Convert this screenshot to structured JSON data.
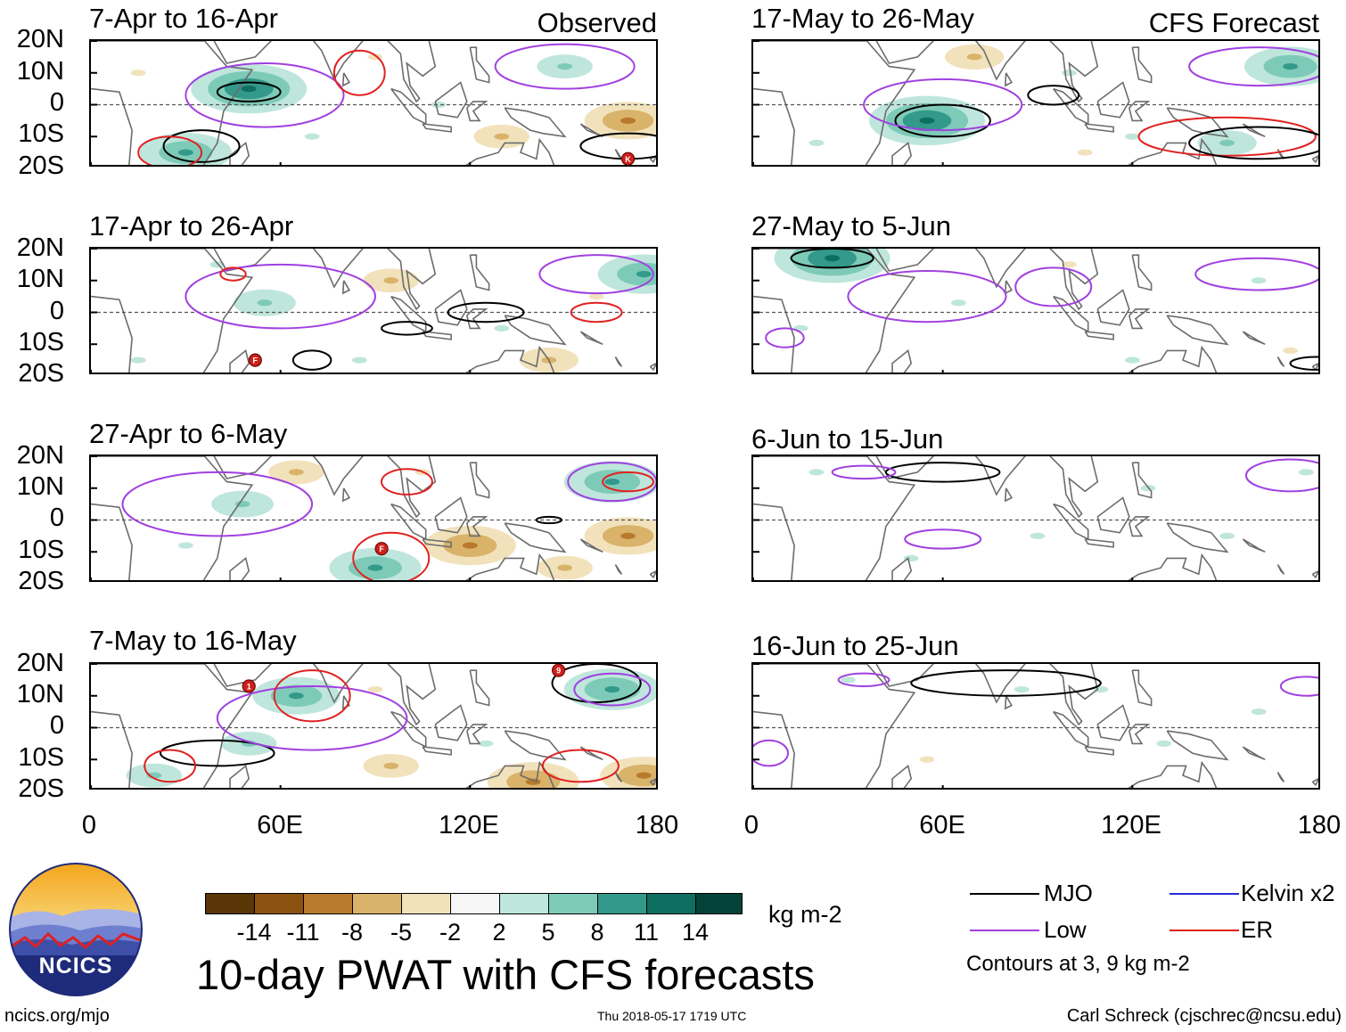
{
  "figure_title": "10-day PWAT with CFS forecasts",
  "column_labels": {
    "observed": "Observed",
    "forecast": "CFS Forecast"
  },
  "units": "kg m-2",
  "footer": {
    "url": "ncics.org/mjo",
    "timestamp": "Thu 2018-05-17 1719 UTC",
    "author": "Carl Schreck (cjschrec@ncsu.edu)"
  },
  "logo_text": "NCICS",
  "contour_note": "Contours at 3, 9 kg m-2",
  "colors": {
    "black": "#000000",
    "mjo": "#000000",
    "low": "#a040e0",
    "kelvin": "#2a2ad8",
    "er": "#e02020",
    "coast": "#6c6c6c"
  },
  "chart_data": {
    "type": "heatmap",
    "y_tick_labels": [
      "20N",
      "10N",
      "0",
      "10S",
      "20S"
    ],
    "x_tick_labels": [
      "0",
      "60E",
      "120E",
      "180"
    ],
    "lat_range": [
      -20,
      20
    ],
    "lon_range": [
      0,
      180
    ],
    "colorbar": {
      "tick_labels": [
        "-14",
        "-11",
        "-8",
        "-5",
        "-2",
        "2",
        "5",
        "8",
        "11",
        "14"
      ],
      "colors": [
        "#5a3506",
        "#8c5310",
        "#b87a2c",
        "#d9b36a",
        "#f2e2bc",
        "#f6f6f6",
        "#bfe6dc",
        "#7ecab8",
        "#33998b",
        "#0e6e60",
        "#04433a"
      ]
    },
    "legend": [
      {
        "name": "MJO",
        "color": "#000000"
      },
      {
        "name": "Kelvin x2",
        "color": "#2a2ad8"
      },
      {
        "name": "Low",
        "color": "#a040e0"
      },
      {
        "name": "ER",
        "color": "#e02020"
      }
    ],
    "panels": [
      {
        "period": "7-Apr to 16-Apr",
        "column": "observed"
      },
      {
        "period": "17-Apr to 26-Apr",
        "column": "observed"
      },
      {
        "period": "27-Apr to 6-May",
        "column": "observed"
      },
      {
        "period": "7-May to 16-May",
        "column": "observed"
      },
      {
        "period": "17-May to 26-May",
        "column": "forecast"
      },
      {
        "period": "27-May to 5-Jun",
        "column": "forecast"
      },
      {
        "period": "6-Jun to 15-Jun",
        "column": "forecast"
      },
      {
        "period": "16-Jun to 25-Jun",
        "column": "forecast"
      }
    ],
    "anomaly_blobs": [
      [
        {
          "lon": 50,
          "lat": 5,
          "v": 12
        },
        {
          "lon": 30,
          "lat": -15,
          "v": 10
        },
        {
          "lon": 130,
          "lat": -10,
          "v": -6
        },
        {
          "lon": 170,
          "lat": -5,
          "v": -9
        },
        {
          "lon": 90,
          "lat": 15,
          "v": -5
        },
        {
          "lon": 150,
          "lat": 12,
          "v": 6
        },
        {
          "lon": 70,
          "lat": -10,
          "v": 4
        },
        {
          "lon": 110,
          "lat": 0,
          "v": 4
        },
        {
          "lon": 15,
          "lat": 10,
          "v": -4
        }
      ],
      [
        {
          "lon": 55,
          "lat": 3,
          "v": 8
        },
        {
          "lon": 40,
          "lat": 15,
          "v": 4
        },
        {
          "lon": 95,
          "lat": 10,
          "v": -6
        },
        {
          "lon": 175,
          "lat": 12,
          "v": 10
        },
        {
          "lon": 130,
          "lat": -5,
          "v": 4
        },
        {
          "lon": 145,
          "lat": -15,
          "v": -7
        },
        {
          "lon": 85,
          "lat": -15,
          "v": 5
        },
        {
          "lon": 15,
          "lat": -15,
          "v": 5
        },
        {
          "lon": 160,
          "lat": 5,
          "v": -4
        }
      ],
      [
        {
          "lon": 48,
          "lat": 5,
          "v": 8
        },
        {
          "lon": 90,
          "lat": -15,
          "v": 10
        },
        {
          "lon": 120,
          "lat": -8,
          "v": -10
        },
        {
          "lon": 165,
          "lat": 12,
          "v": 11
        },
        {
          "lon": 170,
          "lat": -5,
          "v": -9
        },
        {
          "lon": 65,
          "lat": 15,
          "v": -6
        },
        {
          "lon": 150,
          "lat": -15,
          "v": -6
        },
        {
          "lon": 30,
          "lat": -8,
          "v": 5
        },
        {
          "lon": 105,
          "lat": 15,
          "v": -4
        }
      ],
      [
        {
          "lon": 65,
          "lat": 10,
          "v": 9
        },
        {
          "lon": 165,
          "lat": 12,
          "v": 11
        },
        {
          "lon": 140,
          "lat": -17,
          "v": -10
        },
        {
          "lon": 20,
          "lat": -15,
          "v": 6
        },
        {
          "lon": 50,
          "lat": -5,
          "v": 6
        },
        {
          "lon": 95,
          "lat": -12,
          "v": -6
        },
        {
          "lon": 90,
          "lat": 12,
          "v": -5
        },
        {
          "lon": 175,
          "lat": -15,
          "v": -9
        },
        {
          "lon": 125,
          "lat": -5,
          "v": 5
        }
      ],
      [
        {
          "lon": 55,
          "lat": -5,
          "v": 12
        },
        {
          "lon": 70,
          "lat": 15,
          "v": -7
        },
        {
          "lon": 170,
          "lat": 12,
          "v": 10
        },
        {
          "lon": 150,
          "lat": -12,
          "v": 7
        },
        {
          "lon": 100,
          "lat": 10,
          "v": 3
        },
        {
          "lon": 120,
          "lat": -10,
          "v": 4
        },
        {
          "lon": 20,
          "lat": -12,
          "v": 4
        },
        {
          "lon": 105,
          "lat": -15,
          "v": -4
        }
      ],
      [
        {
          "lon": 25,
          "lat": 17,
          "v": 12
        },
        {
          "lon": 65,
          "lat": 3,
          "v": 5
        },
        {
          "lon": 100,
          "lat": 15,
          "v": -5
        },
        {
          "lon": 160,
          "lat": 10,
          "v": 4
        },
        {
          "lon": 120,
          "lat": -15,
          "v": 3
        },
        {
          "lon": 15,
          "lat": -5,
          "v": 3
        },
        {
          "lon": 170,
          "lat": -12,
          "v": -3
        }
      ],
      [
        {
          "lon": 20,
          "lat": 15,
          "v": 4
        },
        {
          "lon": 90,
          "lat": -5,
          "v": 3
        },
        {
          "lon": 150,
          "lat": -5,
          "v": 3
        },
        {
          "lon": 175,
          "lat": 15,
          "v": 4
        },
        {
          "lon": 50,
          "lat": -12,
          "v": 3
        },
        {
          "lon": 125,
          "lat": 10,
          "v": 3
        }
      ],
      [
        {
          "lon": 110,
          "lat": 12,
          "v": 4
        },
        {
          "lon": 130,
          "lat": -5,
          "v": 3
        },
        {
          "lon": 30,
          "lat": 15,
          "v": 3
        },
        {
          "lon": 160,
          "lat": 5,
          "v": 3
        },
        {
          "lon": 55,
          "lat": -10,
          "v": -3
        },
        {
          "lon": 85,
          "lat": 12,
          "v": 3
        }
      ]
    ],
    "contours": [
      [
        {
          "type": "mjo",
          "lon": 50,
          "lat": 4,
          "rlon": 10,
          "rlat": 3
        },
        {
          "type": "mjo",
          "lon": 35,
          "lat": -13,
          "rlon": 12,
          "rlat": 5
        },
        {
          "type": "low",
          "lon": 55,
          "lat": 3,
          "rlon": 25,
          "rlat": 10
        },
        {
          "type": "er",
          "lon": 85,
          "lat": 10,
          "rlon": 8,
          "rlat": 7
        },
        {
          "type": "er",
          "lon": 25,
          "lat": -15,
          "rlon": 10,
          "rlat": 5
        },
        {
          "type": "low",
          "lon": 150,
          "lat": 12,
          "rlon": 22,
          "rlat": 7
        },
        {
          "type": "mjo",
          "lon": 170,
          "lat": -13,
          "rlon": 15,
          "rlat": 4
        }
      ],
      [
        {
          "type": "low",
          "lon": 60,
          "lat": 5,
          "rlon": 30,
          "rlat": 10
        },
        {
          "type": "mjo",
          "lon": 125,
          "lat": 0,
          "rlon": 12,
          "rlat": 3
        },
        {
          "type": "mjo",
          "lon": 100,
          "lat": -5,
          "rlon": 8,
          "rlat": 2
        },
        {
          "type": "er",
          "lon": 160,
          "lat": 0,
          "rlon": 8,
          "rlat": 3
        },
        {
          "type": "low",
          "lon": 160,
          "lat": 12,
          "rlon": 18,
          "rlat": 6
        },
        {
          "type": "mjo",
          "lon": 70,
          "lat": -15,
          "rlon": 6,
          "rlat": 3
        },
        {
          "type": "er",
          "lon": 45,
          "lat": 12,
          "rlon": 4,
          "rlat": 2
        }
      ],
      [
        {
          "type": "low",
          "lon": 40,
          "lat": 5,
          "rlon": 30,
          "rlat": 10
        },
        {
          "type": "er",
          "lon": 95,
          "lat": -12,
          "rlon": 12,
          "rlat": 8
        },
        {
          "type": "low",
          "lon": 165,
          "lat": 12,
          "rlon": 14,
          "rlat": 6
        },
        {
          "type": "er",
          "lon": 170,
          "lat": 12,
          "rlon": 8,
          "rlat": 3
        },
        {
          "type": "er",
          "lon": 100,
          "lat": 12,
          "rlon": 8,
          "rlat": 4
        },
        {
          "type": "mjo",
          "lon": 145,
          "lat": 0,
          "rlon": 4,
          "rlat": 1
        }
      ],
      [
        {
          "type": "mjo",
          "lon": 40,
          "lat": -8,
          "rlon": 18,
          "rlat": 4
        },
        {
          "type": "low",
          "lon": 70,
          "lat": 3,
          "rlon": 30,
          "rlat": 10
        },
        {
          "type": "mjo",
          "lon": 160,
          "lat": 14,
          "rlon": 14,
          "rlat": 6
        },
        {
          "type": "er",
          "lon": 70,
          "lat": 10,
          "rlon": 12,
          "rlat": 8
        },
        {
          "type": "er",
          "lon": 25,
          "lat": -12,
          "rlon": 8,
          "rlat": 5
        },
        {
          "type": "er",
          "lon": 155,
          "lat": -12,
          "rlon": 12,
          "rlat": 5
        },
        {
          "type": "low",
          "lon": 165,
          "lat": 12,
          "rlon": 12,
          "rlat": 5
        }
      ],
      [
        {
          "type": "mjo",
          "lon": 60,
          "lat": -5,
          "rlon": 15,
          "rlat": 5
        },
        {
          "type": "low",
          "lon": 60,
          "lat": 0,
          "rlon": 25,
          "rlat": 8
        },
        {
          "type": "er",
          "lon": 150,
          "lat": -10,
          "rlon": 28,
          "rlat": 6
        },
        {
          "type": "mjo",
          "lon": 160,
          "lat": -12,
          "rlon": 22,
          "rlat": 5
        },
        {
          "type": "low",
          "lon": 160,
          "lat": 12,
          "rlon": 22,
          "rlat": 6
        },
        {
          "type": "mjo",
          "lon": 95,
          "lat": 3,
          "rlon": 8,
          "rlat": 3
        }
      ],
      [
        {
          "type": "mjo",
          "lon": 25,
          "lat": 17,
          "rlon": 13,
          "rlat": 3
        },
        {
          "type": "low",
          "lon": 55,
          "lat": 5,
          "rlon": 25,
          "rlat": 8
        },
        {
          "type": "low",
          "lon": 160,
          "lat": 12,
          "rlon": 20,
          "rlat": 5
        },
        {
          "type": "low",
          "lon": 95,
          "lat": 8,
          "rlon": 12,
          "rlat": 6
        },
        {
          "type": "mjo",
          "lon": 178,
          "lat": -16,
          "rlon": 8,
          "rlat": 2
        },
        {
          "type": "low",
          "lon": 10,
          "lat": -8,
          "rlon": 6,
          "rlat": 3
        }
      ],
      [
        {
          "type": "mjo",
          "lon": 60,
          "lat": 15,
          "rlon": 18,
          "rlat": 3
        },
        {
          "type": "low",
          "lon": 60,
          "lat": -6,
          "rlon": 12,
          "rlat": 3
        },
        {
          "type": "low",
          "lon": 170,
          "lat": 14,
          "rlon": 14,
          "rlat": 5
        },
        {
          "type": "low",
          "lon": 35,
          "lat": 15,
          "rlon": 10,
          "rlat": 2
        }
      ],
      [
        {
          "type": "mjo",
          "lon": 80,
          "lat": 14,
          "rlon": 30,
          "rlat": 4
        },
        {
          "type": "low",
          "lon": 35,
          "lat": 15,
          "rlon": 8,
          "rlat": 2
        },
        {
          "type": "low",
          "lon": 175,
          "lat": 13,
          "rlon": 8,
          "rlat": 3
        },
        {
          "type": "low",
          "lon": 5,
          "lat": -8,
          "rlon": 6,
          "rlat": 4
        }
      ]
    ],
    "cyclones": [
      [
        {
          "lon": 170,
          "lat": -17,
          "label": "K"
        }
      ],
      [
        {
          "lon": 52,
          "lat": -15,
          "label": "F"
        }
      ],
      [
        {
          "lon": 92,
          "lat": -9,
          "label": "F"
        }
      ],
      [
        {
          "lon": 50,
          "lat": 13,
          "label": "1"
        },
        {
          "lon": 148,
          "lat": 18,
          "label": "9"
        }
      ],
      [],
      [],
      [],
      []
    ]
  }
}
